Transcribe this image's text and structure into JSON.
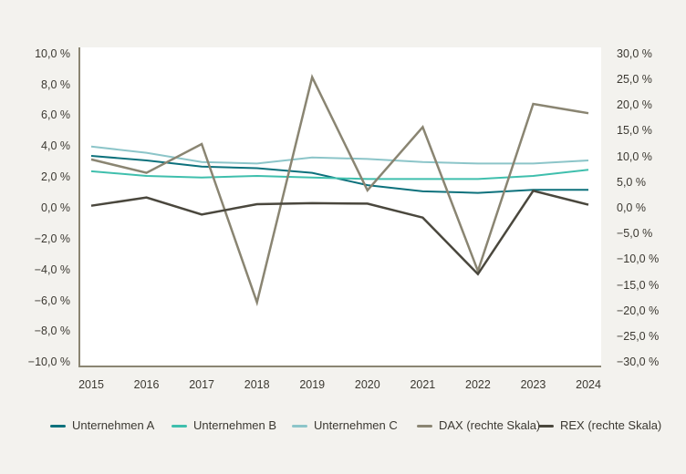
{
  "colors": {
    "background": "#f3f2ee",
    "plot_background": "#ffffff",
    "axis": "#8a8572",
    "text": "#3b3831"
  },
  "chart_data": {
    "type": "line",
    "title": "",
    "xlabel": "",
    "ylabel_left": "",
    "ylabel_right": "",
    "grid": false,
    "legend_position": "bottom",
    "x": [
      2015,
      2016,
      2017,
      2018,
      2019,
      2020,
      2021,
      2022,
      2023,
      2024
    ],
    "x_tick_labels": [
      "2015",
      "2016",
      "2017",
      "2018",
      "2019",
      "2020",
      "2021",
      "2022",
      "2023",
      "2024"
    ],
    "left_axis": {
      "range": [
        -10,
        10
      ],
      "tick_step": 2,
      "tick_labels": [
        "10,0 %",
        "8,0 %",
        "6,0 %",
        "4,0 %",
        "2,0 %",
        "0,0 %",
        "−2,0 %",
        "−4,0 %",
        "−6,0 %",
        "−8,0 %",
        "−10,0 %"
      ]
    },
    "right_axis": {
      "range": [
        -30,
        30
      ],
      "tick_step": 5,
      "tick_labels": [
        "30,0 %",
        "25,0 %",
        "20,0 %",
        "15,0 %",
        "10,0 %",
        "5,0 %",
        "0,0 %",
        "−5,0 %",
        "−10,0 %",
        "−15,0 %",
        "−20,0 %",
        "−25,0 %",
        "−30,0 %"
      ]
    },
    "series": [
      {
        "name": "Unternehmen A",
        "axis": "left",
        "color": "#0d717c",
        "stroke_width": 2,
        "values": [
          3.4,
          3.1,
          2.7,
          2.6,
          2.3,
          1.5,
          1.1,
          1.0,
          1.2,
          1.2
        ]
      },
      {
        "name": "Unternehmen B",
        "axis": "left",
        "color": "#3fbfad",
        "stroke_width": 2,
        "values": [
          2.4,
          2.1,
          2.0,
          2.1,
          2.0,
          1.9,
          1.9,
          1.9,
          2.1,
          2.5
        ]
      },
      {
        "name": "Unternehmen C",
        "axis": "left",
        "color": "#8cc5c9",
        "stroke_width": 2,
        "values": [
          4.0,
          3.6,
          3.0,
          2.9,
          3.3,
          3.2,
          3.0,
          2.9,
          2.9,
          3.1
        ]
      },
      {
        "name": "DAX (rechte Skala)",
        "axis": "right",
        "color": "#8a8572",
        "stroke_width": 2.5,
        "values": [
          9.5,
          6.9,
          12.5,
          -18.3,
          25.5,
          3.5,
          15.8,
          -12.2,
          20.3,
          18.5
        ]
      },
      {
        "name": "REX (rechte Skala)",
        "axis": "right",
        "color": "#4a473d",
        "stroke_width": 2.5,
        "values": [
          0.5,
          2.1,
          -1.2,
          0.8,
          1.0,
          0.9,
          -1.8,
          -12.8,
          3.4,
          0.7
        ]
      }
    ]
  }
}
